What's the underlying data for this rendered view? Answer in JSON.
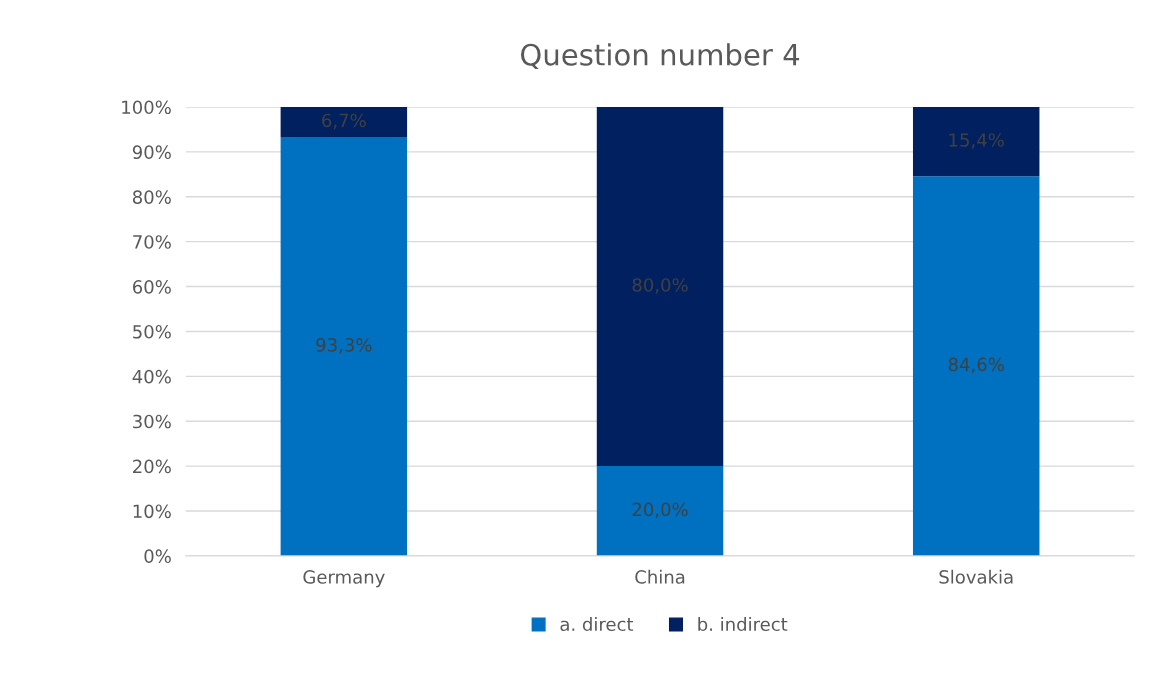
{
  "chart_data": {
    "type": "bar",
    "title": "Question number 4",
    "categories": [
      "Germany",
      "China",
      "Slovakia"
    ],
    "stacked": true,
    "series": [
      {
        "name": "a. direct",
        "color": "#0070c0",
        "values": [
          93.3,
          20.0,
          84.6
        ],
        "value_labels": [
          "93,3%",
          "20,0%",
          "84,6%"
        ]
      },
      {
        "name": "b. indirect",
        "color": "#002060",
        "values": [
          6.7,
          80.0,
          15.4
        ],
        "value_labels": [
          "6,7%",
          "80,0%",
          "15,4%"
        ]
      }
    ],
    "ylim": [
      0,
      100
    ],
    "yticks": [
      {
        "value": 0,
        "label": "0%"
      },
      {
        "value": 10,
        "label": "10%"
      },
      {
        "value": 20,
        "label": "20%"
      },
      {
        "value": 30,
        "label": "30%"
      },
      {
        "value": 40,
        "label": "40%"
      },
      {
        "value": 50,
        "label": "50%"
      },
      {
        "value": 60,
        "label": "60%"
      },
      {
        "value": 70,
        "label": "70%"
      },
      {
        "value": 80,
        "label": "80%"
      },
      {
        "value": 90,
        "label": "90%"
      },
      {
        "value": 100,
        "label": "100%"
      }
    ],
    "grid": "y",
    "legend": "bottom"
  }
}
